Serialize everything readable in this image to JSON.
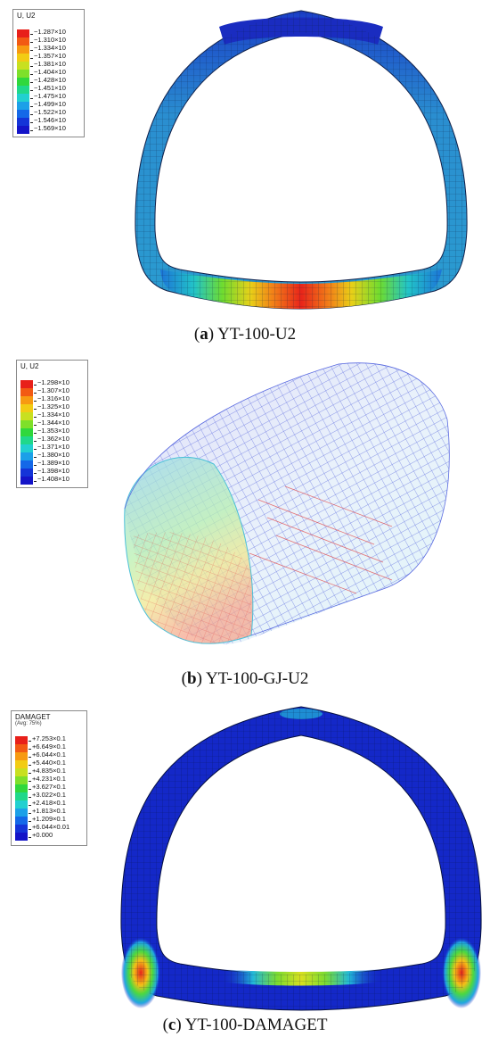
{
  "panels": [
    {
      "caption_letter": "a",
      "caption_text": "YT-100-U2",
      "legend": {
        "title": "U, U2",
        "subtitle": "",
        "labels": [
          "−1.287×10",
          "−1.310×10",
          "−1.334×10",
          "−1.357×10",
          "−1.381×10",
          "−1.404×10",
          "−1.428×10",
          "−1.451×10",
          "−1.475×10",
          "−1.499×10",
          "−1.522×10",
          "−1.546×10",
          "−1.569×10"
        ]
      }
    },
    {
      "caption_letter": "b",
      "caption_text": "YT-100-GJ-U2",
      "legend": {
        "title": "U, U2",
        "subtitle": "",
        "labels": [
          "−1.298×10",
          "−1.307×10",
          "−1.316×10",
          "−1.325×10",
          "−1.334×10",
          "−1.344×10",
          "−1.353×10",
          "−1.362×10",
          "−1.371×10",
          "−1.380×10",
          "−1.389×10",
          "−1.398×10",
          "−1.408×10"
        ]
      }
    },
    {
      "caption_letter": "c",
      "caption_text": "YT-100-DAMAGET",
      "legend": {
        "title": "DAMAGET",
        "subtitle": "(Avg: 75%)",
        "labels": [
          "+7.253×0.1",
          "+6.649×0.1",
          "+6.044×0.1",
          "+5.440×0.1",
          "+4.835×0.1",
          "+4.231×0.1",
          "+3.627×0.1",
          "+3.022×0.1",
          "+2.418×0.1",
          "+1.813×0.1",
          "+1.209×0.1",
          "+6.044×0.01",
          "+0.000"
        ]
      }
    }
  ],
  "colors": {
    "scale": [
      "#e8201a",
      "#f25a14",
      "#f79a12",
      "#f2cc14",
      "#c8e020",
      "#7ee02a",
      "#30d83c",
      "#20d88a",
      "#22d0d0",
      "#1ca0e8",
      "#1468e8",
      "#1434d8",
      "#1414c8"
    ],
    "mesh_blue": "#1e5cc8",
    "mesh_teal": "#2c9cc8",
    "mesh_deep": "#1a2cb8"
  }
}
